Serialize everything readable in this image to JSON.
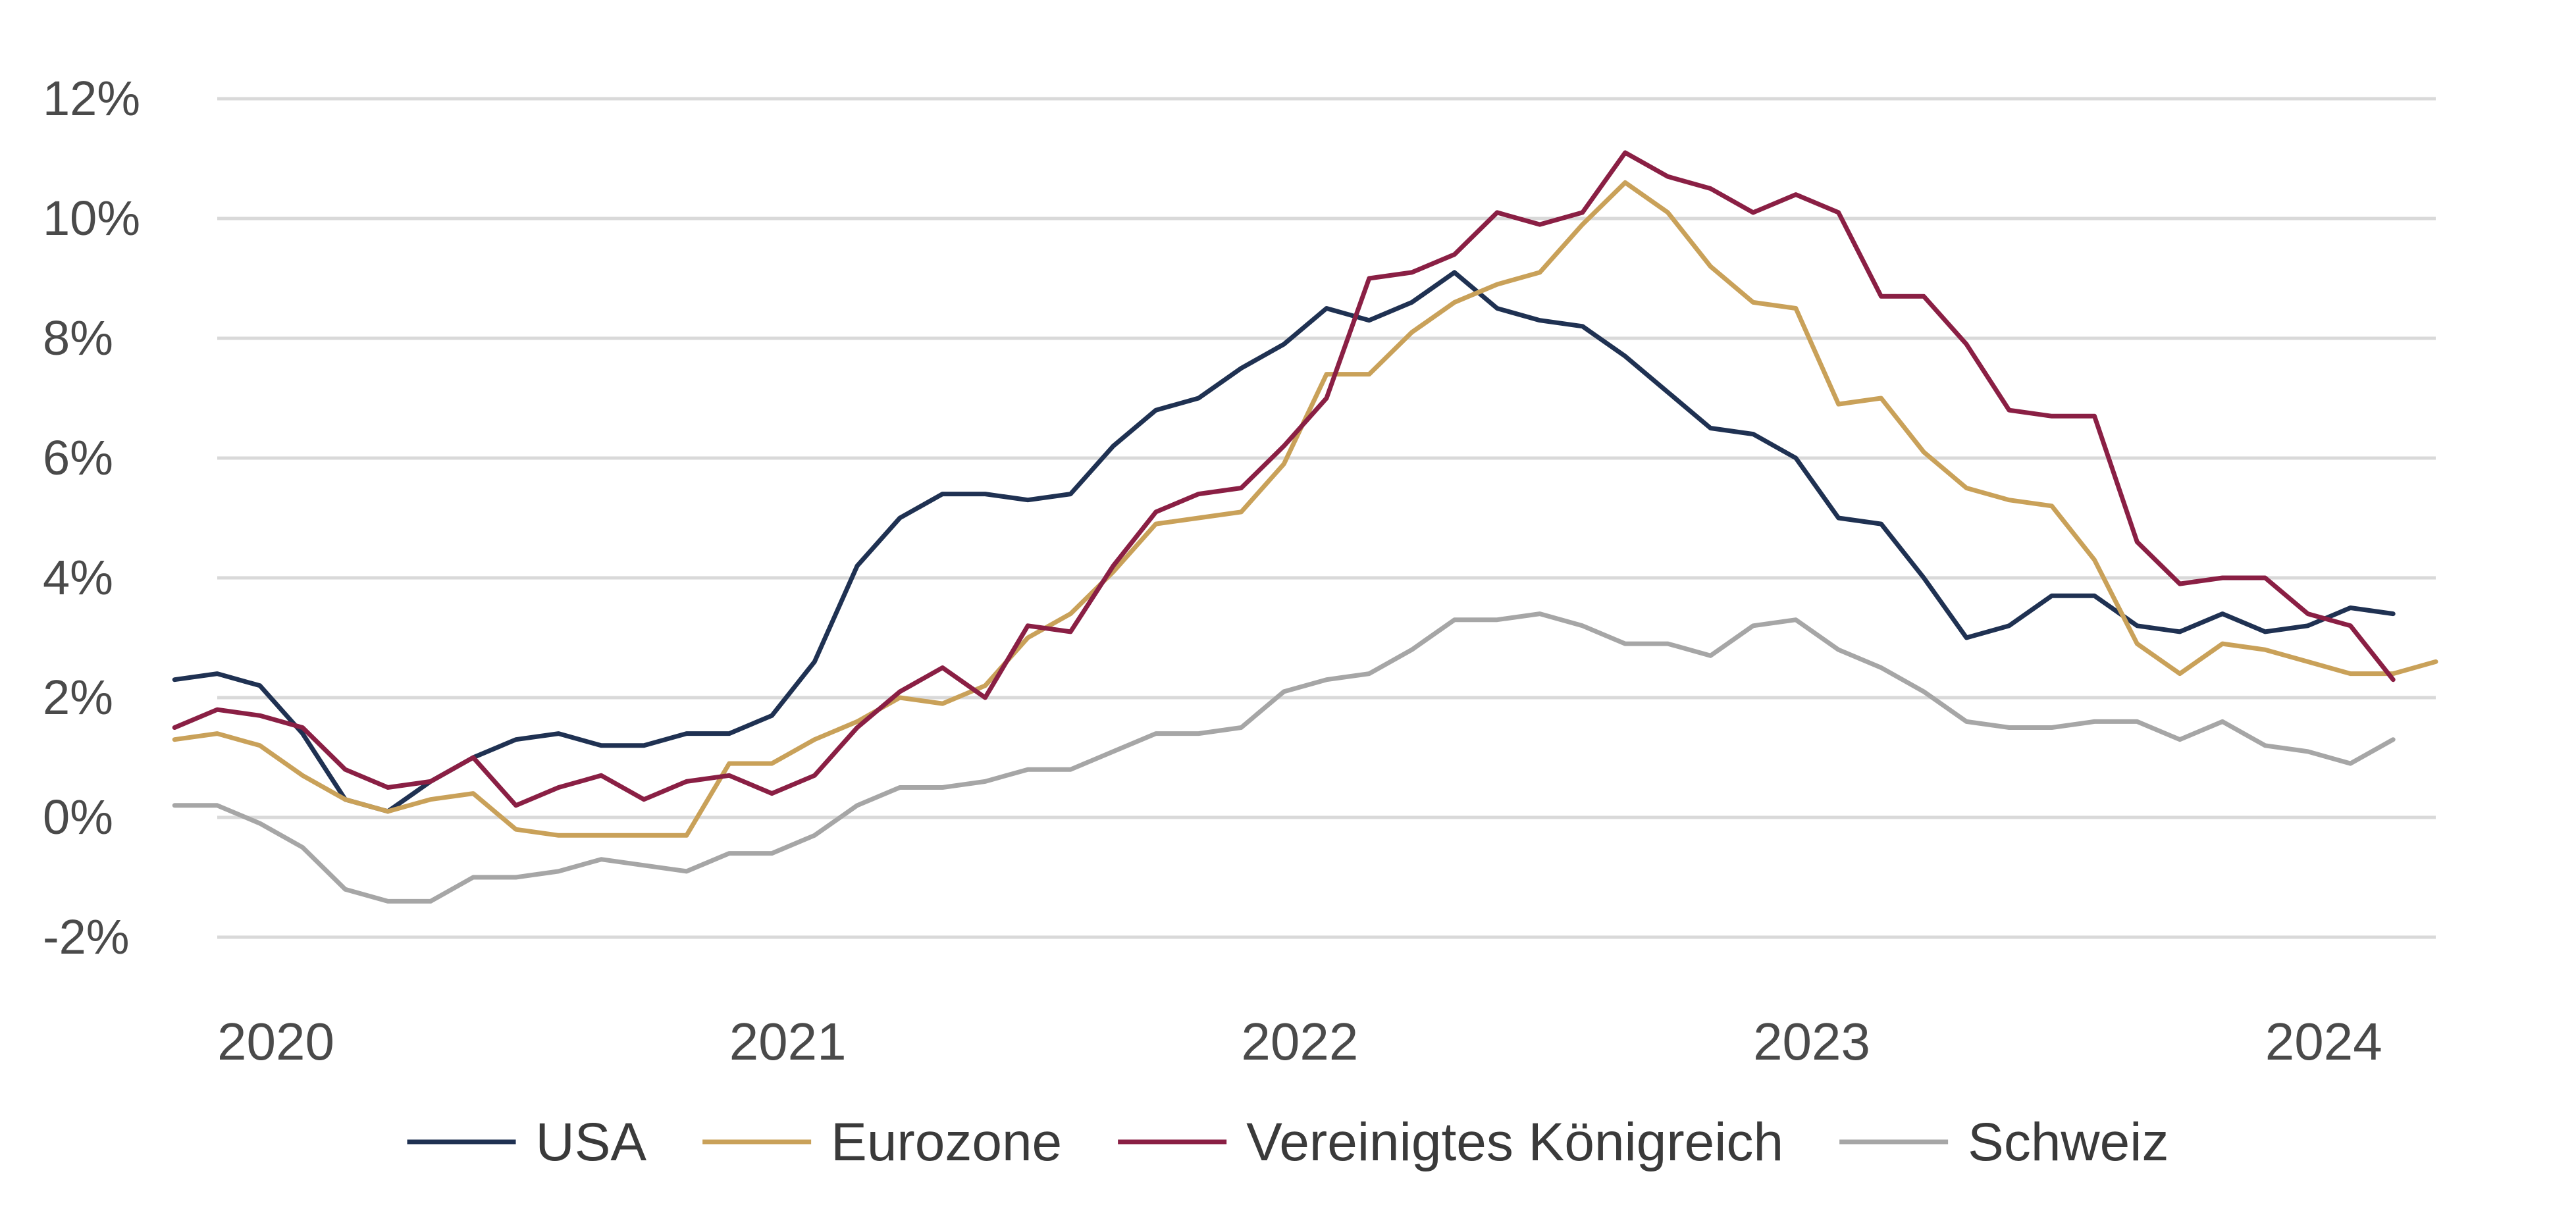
{
  "chart_data": {
    "type": "line",
    "title": "",
    "xlabel": "",
    "ylabel": "",
    "x_start": "2020-01",
    "x_end": "2024-05",
    "x_ticks": [
      {
        "date": "2020-01",
        "label": "2020"
      },
      {
        "date": "2021-01",
        "label": "2021"
      },
      {
        "date": "2022-01",
        "label": "2022"
      },
      {
        "date": "2023-01",
        "label": "2023"
      },
      {
        "date": "2024-01",
        "label": "2024"
      }
    ],
    "ylim": [
      -2,
      12
    ],
    "y_ticks": [
      {
        "value": 12,
        "label": "12%"
      },
      {
        "value": 10,
        "label": "10%"
      },
      {
        "value": 8,
        "label": "8%"
      },
      {
        "value": 6,
        "label": "6%"
      },
      {
        "value": 4,
        "label": "4%"
      },
      {
        "value": 2,
        "label": "2%"
      },
      {
        "value": 0,
        "label": "0%"
      },
      {
        "value": -2,
        "label": "-2%"
      }
    ],
    "grid": true,
    "legend_position": "bottom",
    "series": [
      {
        "name": "USA",
        "color": "#1f3152",
        "start": "2019-12",
        "values": [
          2.3,
          2.4,
          2.2,
          1.4,
          0.3,
          0.1,
          0.6,
          1.0,
          1.3,
          1.4,
          1.2,
          1.2,
          1.4,
          1.4,
          1.7,
          2.6,
          4.2,
          5.0,
          5.4,
          5.4,
          5.3,
          5.4,
          6.2,
          6.8,
          7.0,
          7.5,
          7.9,
          8.5,
          8.3,
          8.6,
          9.1,
          8.5,
          8.3,
          8.2,
          7.7,
          7.1,
          6.5,
          6.4,
          6.0,
          5.0,
          4.9,
          4.0,
          3.0,
          3.2,
          3.7,
          3.7,
          3.2,
          3.1,
          3.4,
          3.1,
          3.2,
          3.5,
          3.4
        ]
      },
      {
        "name": "Eurozone",
        "color": "#c9a159",
        "start": "2019-12",
        "values": [
          1.3,
          1.4,
          1.2,
          0.7,
          0.3,
          0.1,
          0.3,
          0.4,
          -0.2,
          -0.3,
          -0.3,
          -0.3,
          -0.3,
          0.9,
          0.9,
          1.3,
          1.6,
          2.0,
          1.9,
          2.2,
          3.0,
          3.4,
          4.1,
          4.9,
          5.0,
          5.1,
          5.9,
          7.4,
          7.4,
          8.1,
          8.6,
          8.9,
          9.1,
          9.9,
          10.6,
          10.1,
          9.2,
          8.6,
          8.5,
          6.9,
          7.0,
          6.1,
          5.5,
          5.3,
          5.2,
          4.3,
          2.9,
          2.4,
          2.9,
          2.8,
          2.6,
          2.4,
          2.4,
          2.6
        ]
      },
      {
        "name": "Vereinigtes Königreich",
        "color": "#8a1f44",
        "start": "2019-12",
        "values": [
          1.5,
          1.8,
          1.7,
          1.5,
          0.8,
          0.5,
          0.6,
          1.0,
          0.2,
          0.5,
          0.7,
          0.3,
          0.6,
          0.7,
          0.4,
          0.7,
          1.5,
          2.1,
          2.5,
          2.0,
          3.2,
          3.1,
          4.2,
          5.1,
          5.4,
          5.5,
          6.2,
          7.0,
          9.0,
          9.1,
          9.4,
          10.1,
          9.9,
          10.1,
          11.1,
          10.7,
          10.5,
          10.1,
          10.4,
          10.1,
          8.7,
          8.7,
          7.9,
          6.8,
          6.7,
          6.7,
          4.6,
          3.9,
          4.0,
          4.0,
          3.4,
          3.2,
          2.3
        ]
      },
      {
        "name": "Schweiz",
        "color": "#a6a6a6",
        "start": "2019-12",
        "values": [
          0.2,
          0.2,
          -0.1,
          -0.5,
          -1.2,
          -1.4,
          -1.4,
          -1.0,
          -1.0,
          -0.9,
          -0.7,
          -0.8,
          -0.9,
          -0.6,
          -0.6,
          -0.3,
          0.2,
          0.5,
          0.5,
          0.6,
          0.8,
          0.8,
          1.1,
          1.4,
          1.4,
          1.5,
          2.1,
          2.3,
          2.4,
          2.8,
          3.3,
          3.3,
          3.4,
          3.2,
          2.9,
          2.9,
          2.7,
          3.2,
          3.3,
          2.8,
          2.5,
          2.1,
          1.6,
          1.5,
          1.5,
          1.6,
          1.6,
          1.3,
          1.6,
          1.2,
          1.1,
          0.9,
          1.3
        ]
      }
    ]
  }
}
